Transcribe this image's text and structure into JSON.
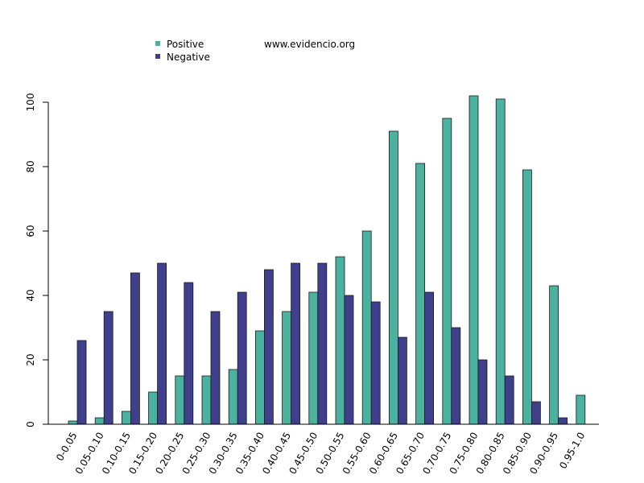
{
  "watermark": "www.evidencio.org",
  "chart_data": {
    "type": "bar",
    "categories": [
      "0-0.05",
      "0.05-0.10",
      "0.10-0.15",
      "0.15-0.20",
      "0.20-0.25",
      "0.25-0.30",
      "0.30-0.35",
      "0.35-0.40",
      "0.40-0.45",
      "0.45-0.50",
      "0.50-0.55",
      "0.55-0.60",
      "0.60-0.65",
      "0.65-0.70",
      "0.70-0.75",
      "0.75-0.80",
      "0.80-0.85",
      "0.85-0.90",
      "0.90-0.95",
      "0.95-1.0"
    ],
    "series": [
      {
        "name": "Positive",
        "color": "#4bb2a0",
        "values": [
          1,
          2,
          4,
          10,
          15,
          15,
          17,
          29,
          35,
          41,
          52,
          60,
          91,
          81,
          95,
          102,
          101,
          79,
          43,
          9
        ]
      },
      {
        "name": "Negative",
        "color": "#3f3f8c",
        "values": [
          26,
          35,
          47,
          50,
          44,
          35,
          41,
          48,
          50,
          50,
          40,
          38,
          27,
          41,
          30,
          20,
          15,
          7,
          2,
          0
        ]
      }
    ],
    "title": "",
    "xlabel": "",
    "ylabel": "",
    "ylim": [
      0,
      105
    ],
    "yticks": [
      0,
      20,
      40,
      60,
      80,
      100
    ],
    "grid": false,
    "legend_position": "top-left"
  }
}
